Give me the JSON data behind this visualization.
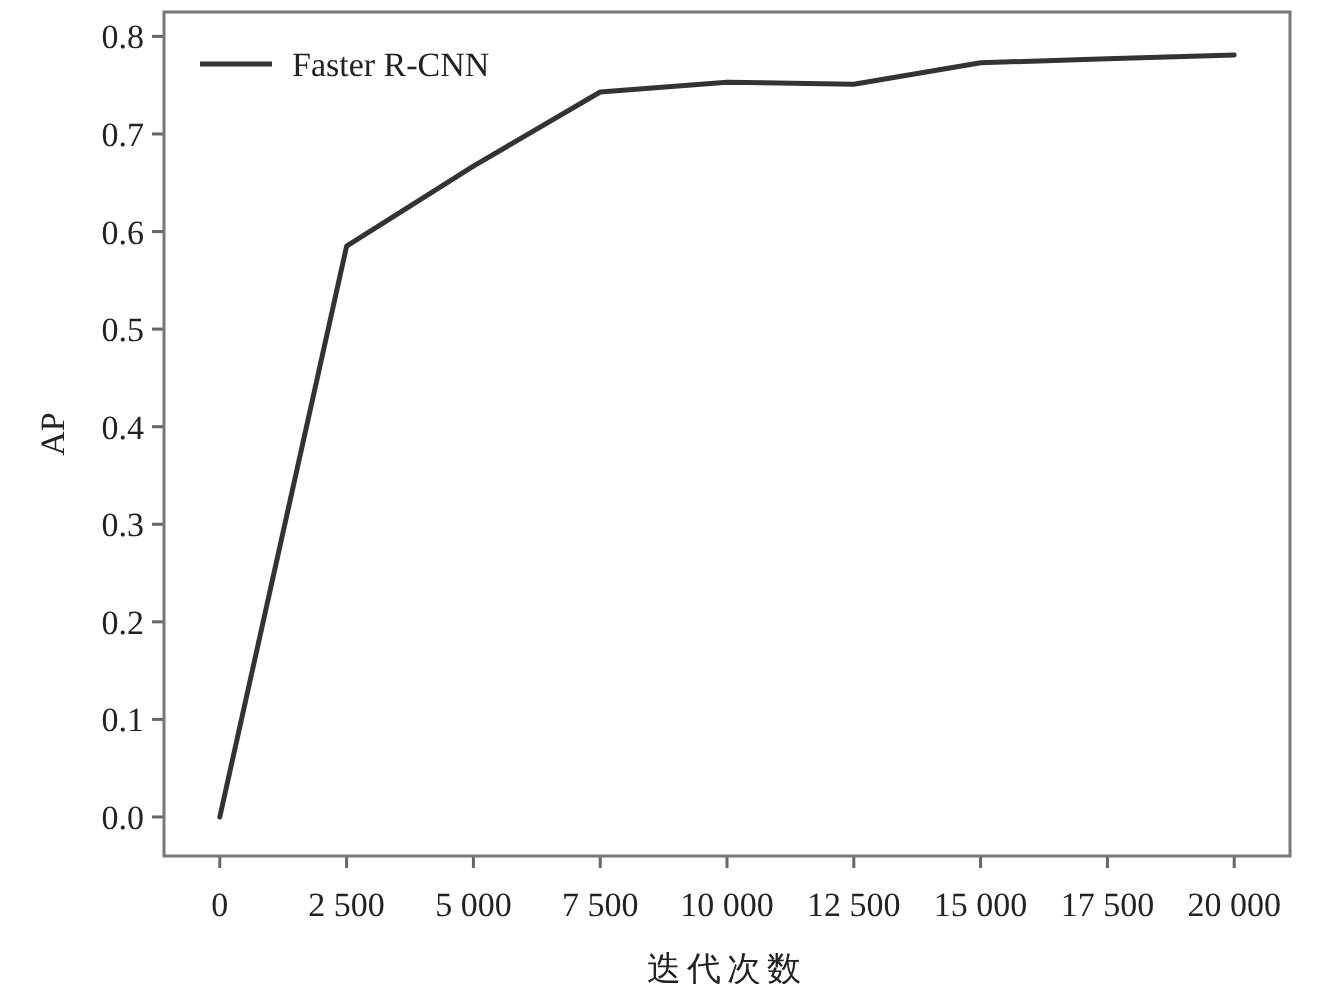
{
  "chart_data": {
    "type": "line",
    "xlabel": "迭代次数",
    "ylabel": "AP",
    "x": [
      0,
      2500,
      5000,
      7500,
      10000,
      12500,
      15000,
      17500,
      20000
    ],
    "series": [
      {
        "name": "Faster R-CNN",
        "color": "#333333",
        "values": [
          0.0,
          0.585,
          0.667,
          0.743,
          0.753,
          0.751,
          0.773,
          0.777,
          0.781
        ]
      }
    ],
    "xlim": [
      -1100,
      21100
    ],
    "ylim": [
      -0.04,
      0.825
    ],
    "xticks": [
      0,
      {
        "value": 2500,
        "label": "2 500"
      },
      {
        "value": 5000,
        "label": "5 000"
      },
      {
        "value": 7500,
        "label": "7 500"
      },
      {
        "value": 10000,
        "label": "10 000"
      },
      {
        "value": 12500,
        "label": "12 500"
      },
      {
        "value": 15000,
        "label": "15 000"
      },
      {
        "value": 17500,
        "label": "17 500"
      },
      {
        "value": 20000,
        "label": "20 000"
      }
    ],
    "yticks": [
      {
        "value": 0,
        "label": "0.0"
      },
      0.1,
      0.2,
      0.3,
      0.4,
      0.5,
      0.6,
      0.7,
      0.8
    ],
    "legend": "top left",
    "grid": false,
    "marker": "none",
    "line_style": "solid"
  }
}
